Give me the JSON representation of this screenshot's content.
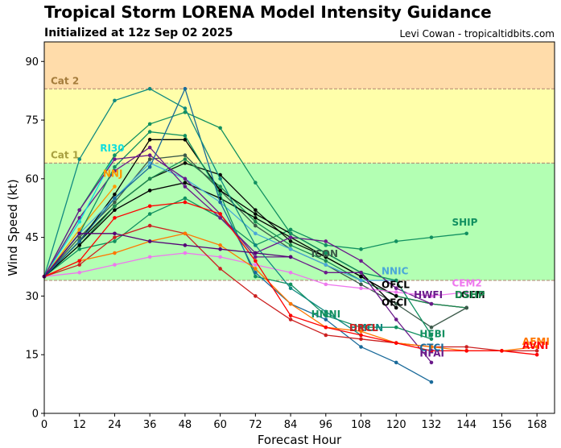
{
  "header": {
    "title": "Tropical Storm LORENA Model Intensity Guidance",
    "subtitle": "Initialized at 12z Sep 02 2025",
    "credit": "Levi Cowan - tropicaltidbits.com"
  },
  "chart_data": {
    "type": "line",
    "xlabel": "Forecast Hour",
    "ylabel": "Wind Speed (kt)",
    "xlim": [
      0,
      174
    ],
    "ylim": [
      0,
      95
    ],
    "xticks": [
      0,
      12,
      24,
      36,
      48,
      60,
      72,
      84,
      96,
      108,
      120,
      132,
      144,
      156,
      168
    ],
    "yticks": [
      0,
      15,
      30,
      45,
      60,
      75,
      90
    ],
    "grid": false,
    "bands": [
      {
        "from": 0,
        "to": 34,
        "color": "#ffffff"
      },
      {
        "from": 34,
        "to": 64,
        "color": "#b3ffb3"
      },
      {
        "from": 64,
        "to": 83,
        "color": "#ffffaa"
      },
      {
        "from": 83,
        "to": 95,
        "color": "#ffdcaa"
      }
    ],
    "threshold_lines": [
      34,
      64,
      83
    ],
    "category_labels": [
      {
        "text": "Cat 2",
        "y": 85,
        "color": "#a57c3c"
      },
      {
        "text": "Cat 1",
        "y": 66,
        "color": "#a8a040"
      }
    ],
    "series": [
      {
        "name": "SHIP",
        "color": "#119060",
        "x": [
          0,
          12,
          24,
          36,
          48,
          60,
          72,
          84,
          96,
          108,
          120,
          132,
          144
        ],
        "y": [
          35,
          42,
          44,
          51,
          55,
          50,
          43,
          47,
          43,
          42,
          44,
          45,
          46
        ],
        "label_at": [
          139,
          48
        ]
      },
      {
        "name": "LGEM",
        "color": "#0a0a0a",
        "x": [
          0,
          12,
          24,
          36,
          48,
          60,
          72,
          84,
          96,
          108,
          120,
          132,
          144
        ],
        "y": [
          35,
          44,
          53,
          60,
          64,
          61,
          52,
          44,
          40,
          35,
          30,
          28,
          27
        ],
        "label_at": [
          140,
          29.5
        ]
      },
      {
        "name": "DSHP",
        "color": "#1b8a50",
        "x": [
          0,
          12,
          24,
          36,
          48,
          60,
          72,
          84,
          96,
          108,
          120,
          132,
          144
        ],
        "y": [
          35,
          43,
          53,
          60,
          65,
          58,
          49,
          43,
          39,
          34,
          30,
          28,
          27
        ],
        "label_at": [
          140,
          29.5
        ]
      },
      {
        "name": "ICON",
        "color": "#3c5a4a",
        "x": [
          0,
          12,
          24,
          36,
          48,
          60,
          72,
          84,
          96,
          108,
          120,
          132,
          144
        ],
        "y": [
          35,
          45,
          54,
          65,
          66,
          57,
          48,
          42,
          38,
          33,
          28,
          22,
          27
        ],
        "label_at": [
          91,
          40
        ]
      },
      {
        "name": "OFCL",
        "color": "#000000",
        "x": [
          0,
          12,
          24,
          36,
          48,
          60,
          72,
          84,
          96,
          108,
          120
        ],
        "y": [
          35,
          43,
          52,
          57,
          59,
          55,
          50,
          45,
          40,
          35,
          30
        ],
        "label_at": [
          115,
          32
        ]
      },
      {
        "name": "OFCI",
        "color": "#000000",
        "x": [
          0,
          12,
          24,
          36,
          48,
          60,
          72,
          84,
          96,
          108,
          120
        ],
        "y": [
          35,
          44,
          56,
          70,
          70,
          57,
          51,
          46,
          41,
          36,
          27
        ],
        "label_at": [
          115,
          27.5
        ]
      },
      {
        "name": "NNIC",
        "color": "#4aa8d8",
        "x": [
          0,
          12,
          24,
          36,
          48,
          60,
          72,
          84,
          96,
          108,
          120
        ],
        "y": [
          35,
          46,
          55,
          64,
          60,
          54,
          46,
          42,
          38,
          34,
          34
        ],
        "label_at": [
          115,
          35.5
        ]
      },
      {
        "name": "HWFI",
        "color": "#6a1a8a",
        "x": [
          0,
          12,
          24,
          36,
          48,
          60,
          72,
          84,
          96,
          108,
          120,
          132
        ],
        "y": [
          35,
          50,
          62,
          68,
          58,
          50,
          41,
          45,
          44,
          39,
          32,
          28
        ],
        "label_at": [
          126,
          29.5
        ]
      },
      {
        "name": "CEM2",
        "color": "#ee77ee",
        "x": [
          0,
          12,
          24,
          36,
          48,
          60,
          72,
          84,
          96,
          108,
          120,
          132,
          144
        ],
        "y": [
          35,
          36,
          38,
          40,
          41,
          40,
          38,
          36,
          33,
          32,
          31,
          30,
          31
        ],
        "label_at": [
          139,
          32.5
        ]
      },
      {
        "name": "RI30",
        "color": "#11dddd",
        "x": [
          0,
          12,
          24
        ],
        "y": [
          35,
          49,
          66
        ],
        "label_at": [
          19,
          67
        ]
      },
      {
        "name": "NNJ",
        "color": "#ff9900",
        "x": [
          0,
          12,
          24
        ],
        "y": [
          35,
          47,
          58
        ],
        "label_at": [
          20,
          60.5
        ]
      },
      {
        "name": "HMNI",
        "color": "#119060",
        "x": [
          0,
          12,
          24,
          36,
          48,
          60,
          72,
          84,
          96,
          108,
          120,
          132
        ],
        "y": [
          35,
          46,
          63,
          72,
          71,
          56,
          35,
          33,
          25,
          22,
          22,
          19
        ],
        "label_at": [
          91,
          24.5
        ]
      },
      {
        "name": "HFBI",
        "color": "#119060",
        "x": [
          0,
          12,
          24,
          36,
          48,
          60,
          72,
          84,
          96,
          108,
          120,
          132
        ],
        "y": [
          35,
          52,
          66,
          74,
          77,
          73,
          59,
          46,
          41,
          36,
          34,
          20
        ],
        "label_at": [
          128,
          19.5
        ]
      },
      {
        "name": "HFAI",
        "color": "#6a1a8a",
        "x": [
          0,
          12,
          24,
          36,
          48,
          60,
          72,
          84,
          96,
          108,
          120,
          132
        ],
        "y": [
          35,
          52,
          65,
          66,
          60,
          51,
          40,
          40,
          36,
          36,
          24,
          13
        ],
        "label_at": [
          128,
          14.5
        ]
      },
      {
        "name": "CTCI",
        "color": "#1a6a9a",
        "x": [
          0,
          12,
          24,
          36,
          48,
          60,
          72,
          84,
          96,
          108,
          120,
          132
        ],
        "y": [
          35,
          44,
          55,
          63,
          83,
          54,
          36,
          28,
          24,
          17,
          13,
          8
        ],
        "label_at": [
          128,
          16
        ]
      },
      {
        "name": "HMON",
        "color": "#118a80",
        "x": [
          0,
          12,
          24,
          36,
          48,
          60,
          72,
          84,
          96,
          108
        ],
        "y": [
          35,
          65,
          80,
          83,
          78,
          60,
          43,
          32,
          26,
          20
        ],
        "label_at": [
          104,
          21
        ]
      },
      {
        "name": "DRCL",
        "color": "#cc2020",
        "x": [
          0,
          12,
          24,
          36,
          48,
          60,
          72,
          84,
          96,
          108,
          120,
          132,
          144,
          156,
          168
        ],
        "y": [
          35,
          38,
          45,
          48,
          46,
          37,
          30,
          24,
          20,
          19,
          18,
          17,
          17,
          16,
          16
        ],
        "label_at": [
          104,
          21
        ]
      },
      {
        "name": "AEMI",
        "color": "#ff7700",
        "x": [
          0,
          12,
          24,
          36,
          48,
          60,
          72,
          84,
          96,
          108,
          120,
          132,
          144,
          156,
          168
        ],
        "y": [
          35,
          39,
          41,
          44,
          46,
          43,
          37,
          28,
          22,
          21,
          18,
          17,
          16,
          16,
          17
        ],
        "label_at": [
          163,
          17.5
        ]
      },
      {
        "name": "AVNI",
        "color": "#ff0000",
        "x": [
          0,
          12,
          24,
          36,
          48,
          60,
          72,
          84,
          96,
          108,
          120,
          132,
          144,
          156,
          168
        ],
        "y": [
          35,
          39,
          50,
          53,
          54,
          51,
          39,
          25,
          22,
          20,
          18,
          16,
          16,
          16,
          15
        ],
        "label_at": [
          163,
          16.5
        ]
      },
      {
        "name": "",
        "color": "#550077",
        "x": [
          0,
          12,
          24,
          36,
          48,
          60,
          72,
          84
        ],
        "y": [
          35,
          46,
          46,
          44,
          43,
          42,
          41,
          40
        ],
        "label_at": null
      }
    ]
  }
}
